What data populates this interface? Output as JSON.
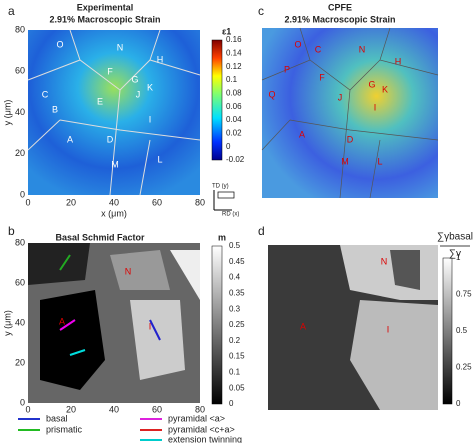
{
  "panels": [
    {
      "label": "a",
      "title": "Experimental",
      "subtitle": "2.91% Macroscopic Strain",
      "xlabel": "x (μm)",
      "ylabel": "y (μm)",
      "xticks": [
        "0",
        "20",
        "40",
        "60",
        "80"
      ],
      "yticks": [
        "80",
        "60",
        "40",
        "20",
        "0"
      ],
      "colorbar_title": "ε1",
      "colorbar_ticks": [
        "0.16",
        "0.14",
        "0.12",
        "0.1",
        "0.08",
        "0.06",
        "0.04",
        "0.02",
        "0",
        "-0.02"
      ],
      "regions": [
        "O",
        "N",
        "H",
        "F",
        "G",
        "K",
        "J",
        "E",
        "C",
        "B",
        "A",
        "D",
        "I",
        "M",
        "L"
      ],
      "axes_icon": [
        "TD (y)",
        "RD (x)"
      ]
    },
    {
      "label": "c",
      "title": "CPFE",
      "subtitle": "2.91% Macroscopic Strain",
      "regions": [
        "O",
        "C",
        "N",
        "H",
        "P",
        "F",
        "G",
        "K",
        "Q",
        "J",
        "I",
        "A",
        "D",
        "M",
        "L"
      ]
    },
    {
      "label": "b",
      "title": "Basal Schmid Factor",
      "ylabel": "y (μm)",
      "xticks": [
        "0",
        "20",
        "40",
        "60",
        "80"
      ],
      "yticks": [
        "80",
        "60",
        "40",
        "20",
        "0"
      ],
      "colorbar_title": "m",
      "colorbar_ticks": [
        "0.5",
        "0.45",
        "0.4",
        "0.35",
        "0.3",
        "0.25",
        "0.2",
        "0.15",
        "0.1",
        "0.05",
        "0"
      ],
      "regions": [
        "N",
        "I",
        "A"
      ]
    },
    {
      "label": "d",
      "colorbar_title_num": "∑γbasal",
      "colorbar_title_den": "∑γ",
      "colorbar_ticks": [
        "1",
        "0.75",
        "0.5",
        "0.25",
        "0"
      ],
      "regions": [
        "N",
        "I",
        "A"
      ]
    }
  ],
  "legend": [
    "basal",
    "prismatic",
    "pyramidal <a>",
    "pyramidal <c+a>",
    "extension twinning"
  ]
}
